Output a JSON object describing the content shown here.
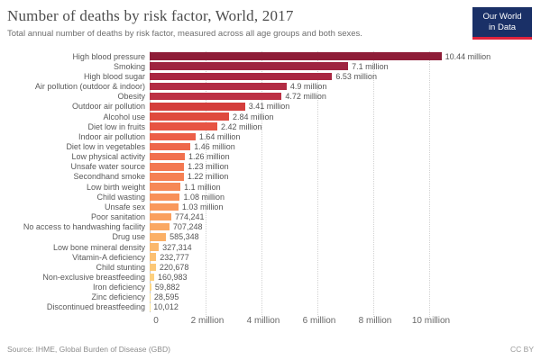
{
  "header": {
    "logo": {
      "line1": "Our World",
      "line2": "in Data",
      "bg_color": "#1a3067",
      "stripe_color": "#e0233c"
    }
  },
  "chart_data": {
    "type": "bar",
    "orientation": "horizontal",
    "title": "Number of deaths by risk factor, World, 2017",
    "subtitle": "Total annual number of deaths by risk factor, measured across all age groups and both sexes.",
    "value_unit": "deaths",
    "grid": "vertical-dotted",
    "xlim": [
      0,
      13000000
    ],
    "categories": [
      "High blood pressure",
      "Smoking",
      "High blood sugar",
      "Air pollution (outdoor & indoor)",
      "Obesity",
      "Outdoor air pollution",
      "Alcohol use",
      "Diet low in fruits",
      "Indoor air pollution",
      "Diet low in vegetables",
      "Low physical activity",
      "Unsafe water source",
      "Secondhand smoke",
      "Low birth weight",
      "Child wasting",
      "Unsafe sex",
      "Poor sanitation",
      "No access to handwashing facility",
      "Drug use",
      "Low bone mineral density",
      "Vitamin-A deficiency",
      "Child stunting",
      "Non-exclusive breastfeeding",
      "Iron deficiency",
      "Zinc deficiency",
      "Discontinued breastfeeding"
    ],
    "values": [
      10440000,
      7100000,
      6530000,
      4900000,
      4720000,
      3410000,
      2840000,
      2420000,
      1640000,
      1460000,
      1260000,
      1230000,
      1220000,
      1100000,
      1080000,
      1030000,
      774241,
      707248,
      585348,
      327314,
      232777,
      220678,
      160983,
      59882,
      28595,
      10012
    ],
    "value_labels": [
      "10.44 million",
      "7.1 million",
      "6.53 million",
      "4.9 million",
      "4.72 million",
      "3.41 million",
      "2.84 million",
      "2.42 million",
      "1.64 million",
      "1.46 million",
      "1.26 million",
      "1.23 million",
      "1.22 million",
      "1.1 million",
      "1.08 million",
      "1.03 million",
      "774,241",
      "707,248",
      "585,348",
      "327,314",
      "232,777",
      "220,678",
      "160,983",
      "59,882",
      "28,595",
      "10,012"
    ],
    "bar_colors": [
      "#8e1d38",
      "#9e2340",
      "#a92742",
      "#b22c44",
      "#bc3145",
      "#d43e3c",
      "#df4a3e",
      "#e75443",
      "#ec5e48",
      "#ee674b",
      "#f1704e",
      "#f37851",
      "#f58053",
      "#f68856",
      "#f89059",
      "#f9985c",
      "#faa05f",
      "#faa862",
      "#fbb066",
      "#fbb86c",
      "#fcc072",
      "#fcc878",
      "#fdd07f",
      "#fdd887",
      "#fee090",
      "#fee89a"
    ],
    "x_ticks": [
      {
        "value": 0,
        "label": "0"
      },
      {
        "value": 2000000,
        "label": "2 million"
      },
      {
        "value": 4000000,
        "label": "4 million"
      },
      {
        "value": 6000000,
        "label": "6 million"
      },
      {
        "value": 8000000,
        "label": "8 million"
      },
      {
        "value": 10000000,
        "label": "10 million"
      }
    ]
  },
  "footer": {
    "source": "Source: IHME, Global Burden of Disease (GBD)",
    "license": "CC BY"
  }
}
